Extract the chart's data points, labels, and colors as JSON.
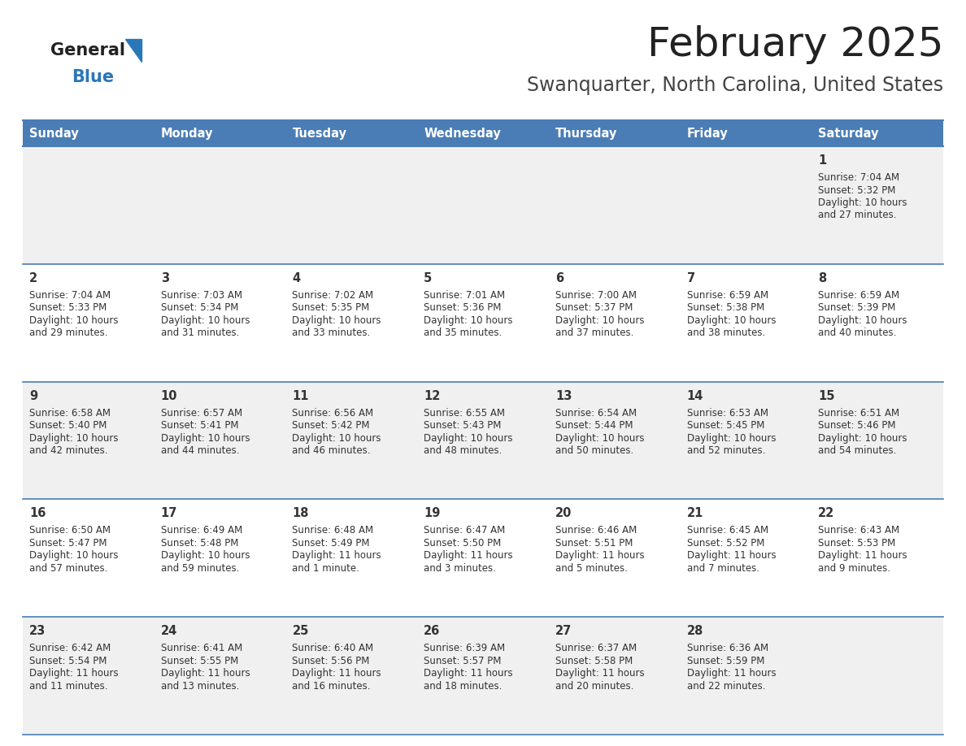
{
  "title": "February 2025",
  "subtitle": "Swanquarter, North Carolina, United States",
  "days_of_week": [
    "Sunday",
    "Monday",
    "Tuesday",
    "Wednesday",
    "Thursday",
    "Friday",
    "Saturday"
  ],
  "header_bg": "#4a7db5",
  "header_text": "#ffffff",
  "row_bg_odd": "#f0f0f0",
  "row_bg_even": "#ffffff",
  "border_color": "#4a7db5",
  "text_color": "#333333",
  "day_num_color": "#333333",
  "title_color": "#222222",
  "subtitle_color": "#444444",
  "logo_general_color": "#222222",
  "logo_blue_color": "#2a77b8",
  "fig_width": 11.88,
  "fig_height": 9.18,
  "calendar_data": [
    {
      "day": 1,
      "row": 0,
      "col": 6,
      "sunrise": "7:04 AM",
      "sunset": "5:32 PM",
      "daylight": "10 hours and 27 minutes."
    },
    {
      "day": 2,
      "row": 1,
      "col": 0,
      "sunrise": "7:04 AM",
      "sunset": "5:33 PM",
      "daylight": "10 hours and 29 minutes."
    },
    {
      "day": 3,
      "row": 1,
      "col": 1,
      "sunrise": "7:03 AM",
      "sunset": "5:34 PM",
      "daylight": "10 hours and 31 minutes."
    },
    {
      "day": 4,
      "row": 1,
      "col": 2,
      "sunrise": "7:02 AM",
      "sunset": "5:35 PM",
      "daylight": "10 hours and 33 minutes."
    },
    {
      "day": 5,
      "row": 1,
      "col": 3,
      "sunrise": "7:01 AM",
      "sunset": "5:36 PM",
      "daylight": "10 hours and 35 minutes."
    },
    {
      "day": 6,
      "row": 1,
      "col": 4,
      "sunrise": "7:00 AM",
      "sunset": "5:37 PM",
      "daylight": "10 hours and 37 minutes."
    },
    {
      "day": 7,
      "row": 1,
      "col": 5,
      "sunrise": "6:59 AM",
      "sunset": "5:38 PM",
      "daylight": "10 hours and 38 minutes."
    },
    {
      "day": 8,
      "row": 1,
      "col": 6,
      "sunrise": "6:59 AM",
      "sunset": "5:39 PM",
      "daylight": "10 hours and 40 minutes."
    },
    {
      "day": 9,
      "row": 2,
      "col": 0,
      "sunrise": "6:58 AM",
      "sunset": "5:40 PM",
      "daylight": "10 hours and 42 minutes."
    },
    {
      "day": 10,
      "row": 2,
      "col": 1,
      "sunrise": "6:57 AM",
      "sunset": "5:41 PM",
      "daylight": "10 hours and 44 minutes."
    },
    {
      "day": 11,
      "row": 2,
      "col": 2,
      "sunrise": "6:56 AM",
      "sunset": "5:42 PM",
      "daylight": "10 hours and 46 minutes."
    },
    {
      "day": 12,
      "row": 2,
      "col": 3,
      "sunrise": "6:55 AM",
      "sunset": "5:43 PM",
      "daylight": "10 hours and 48 minutes."
    },
    {
      "day": 13,
      "row": 2,
      "col": 4,
      "sunrise": "6:54 AM",
      "sunset": "5:44 PM",
      "daylight": "10 hours and 50 minutes."
    },
    {
      "day": 14,
      "row": 2,
      "col": 5,
      "sunrise": "6:53 AM",
      "sunset": "5:45 PM",
      "daylight": "10 hours and 52 minutes."
    },
    {
      "day": 15,
      "row": 2,
      "col": 6,
      "sunrise": "6:51 AM",
      "sunset": "5:46 PM",
      "daylight": "10 hours and 54 minutes."
    },
    {
      "day": 16,
      "row": 3,
      "col": 0,
      "sunrise": "6:50 AM",
      "sunset": "5:47 PM",
      "daylight": "10 hours and 57 minutes."
    },
    {
      "day": 17,
      "row": 3,
      "col": 1,
      "sunrise": "6:49 AM",
      "sunset": "5:48 PM",
      "daylight": "10 hours and 59 minutes."
    },
    {
      "day": 18,
      "row": 3,
      "col": 2,
      "sunrise": "6:48 AM",
      "sunset": "5:49 PM",
      "daylight": "11 hours and 1 minute."
    },
    {
      "day": 19,
      "row": 3,
      "col": 3,
      "sunrise": "6:47 AM",
      "sunset": "5:50 PM",
      "daylight": "11 hours and 3 minutes."
    },
    {
      "day": 20,
      "row": 3,
      "col": 4,
      "sunrise": "6:46 AM",
      "sunset": "5:51 PM",
      "daylight": "11 hours and 5 minutes."
    },
    {
      "day": 21,
      "row": 3,
      "col": 5,
      "sunrise": "6:45 AM",
      "sunset": "5:52 PM",
      "daylight": "11 hours and 7 minutes."
    },
    {
      "day": 22,
      "row": 3,
      "col": 6,
      "sunrise": "6:43 AM",
      "sunset": "5:53 PM",
      "daylight": "11 hours and 9 minutes."
    },
    {
      "day": 23,
      "row": 4,
      "col": 0,
      "sunrise": "6:42 AM",
      "sunset": "5:54 PM",
      "daylight": "11 hours and 11 minutes."
    },
    {
      "day": 24,
      "row": 4,
      "col": 1,
      "sunrise": "6:41 AM",
      "sunset": "5:55 PM",
      "daylight": "11 hours and 13 minutes."
    },
    {
      "day": 25,
      "row": 4,
      "col": 2,
      "sunrise": "6:40 AM",
      "sunset": "5:56 PM",
      "daylight": "11 hours and 16 minutes."
    },
    {
      "day": 26,
      "row": 4,
      "col": 3,
      "sunrise": "6:39 AM",
      "sunset": "5:57 PM",
      "daylight": "11 hours and 18 minutes."
    },
    {
      "day": 27,
      "row": 4,
      "col": 4,
      "sunrise": "6:37 AM",
      "sunset": "5:58 PM",
      "daylight": "11 hours and 20 minutes."
    },
    {
      "day": 28,
      "row": 4,
      "col": 5,
      "sunrise": "6:36 AM",
      "sunset": "5:59 PM",
      "daylight": "11 hours and 22 minutes."
    }
  ]
}
